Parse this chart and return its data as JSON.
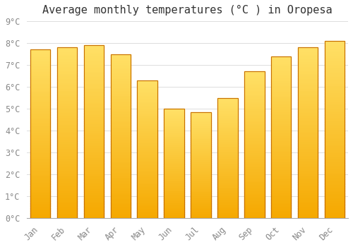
{
  "title": "Average monthly temperatures (°C ) in Oropesa",
  "months": [
    "Jan",
    "Feb",
    "Mar",
    "Apr",
    "May",
    "Jun",
    "Jul",
    "Aug",
    "Sep",
    "Oct",
    "Nov",
    "Dec"
  ],
  "values": [
    7.7,
    7.8,
    7.9,
    7.5,
    6.3,
    5.0,
    4.85,
    5.5,
    6.7,
    7.4,
    7.8,
    8.1
  ],
  "bar_color_bottom": "#F5A800",
  "bar_color_top": "#FFE066",
  "bar_edge_color": "#C87000",
  "ylim": [
    0,
    9
  ],
  "yticks": [
    0,
    1,
    2,
    3,
    4,
    5,
    6,
    7,
    8,
    9
  ],
  "ytick_labels": [
    "0°C",
    "1°C",
    "2°C",
    "3°C",
    "4°C",
    "5°C",
    "6°C",
    "7°C",
    "8°C",
    "9°C"
  ],
  "background_color": "#FFFFFF",
  "grid_color": "#DDDDDD",
  "title_fontsize": 11,
  "tick_fontsize": 8.5,
  "font_family": "monospace",
  "bar_width": 0.75
}
